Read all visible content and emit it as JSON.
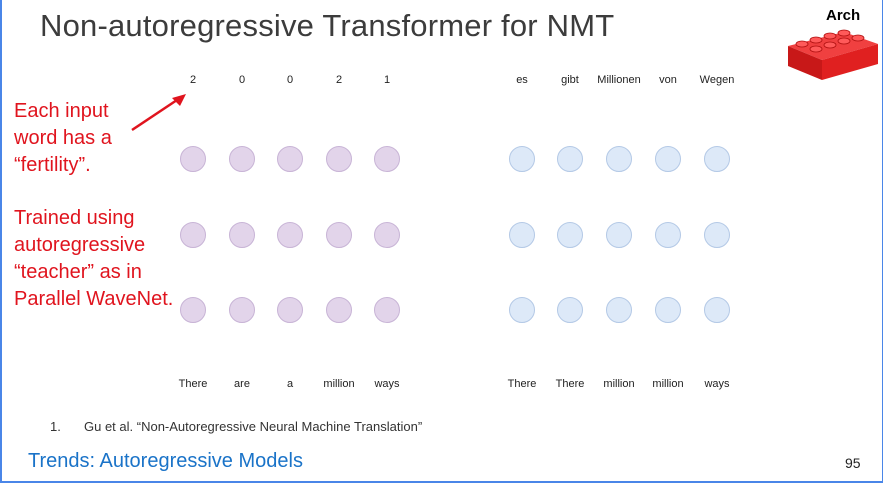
{
  "slide": {
    "title": "Non-autoregressive Transformer for NMT",
    "badge": "Arch",
    "notes": {
      "fertility": "Each input word has a “fertility”.",
      "training": "Trained using autoregressive “teacher” as in Parallel WaveNet."
    },
    "footnote": {
      "number": "1.",
      "text": "Gu et al. “Non-Autoregressive Neural Machine Translation”"
    },
    "footer": "Trends: Autoregressive Models",
    "page_number": "95"
  },
  "diagram": {
    "encoder": {
      "fertilities": [
        "2",
        "0",
        "0",
        "2",
        "1"
      ],
      "inputs": [
        "There",
        "are",
        "a",
        "million",
        "ways"
      ],
      "layers": 3,
      "color": "#e2d4ea"
    },
    "decoder": {
      "outputs": [
        "es",
        "gibt",
        "Millionen",
        "von",
        "Wegen"
      ],
      "inputs": [
        "There",
        "There",
        "million",
        "million",
        "ways"
      ],
      "layers": 3,
      "color": "#dde9f8"
    }
  },
  "colors": {
    "annotation": "#e0141e",
    "footer": "#1a73c8",
    "brick": "#e02020"
  },
  "icons": [
    "red-lego-brick-icon",
    "red-arrow-icon"
  ]
}
